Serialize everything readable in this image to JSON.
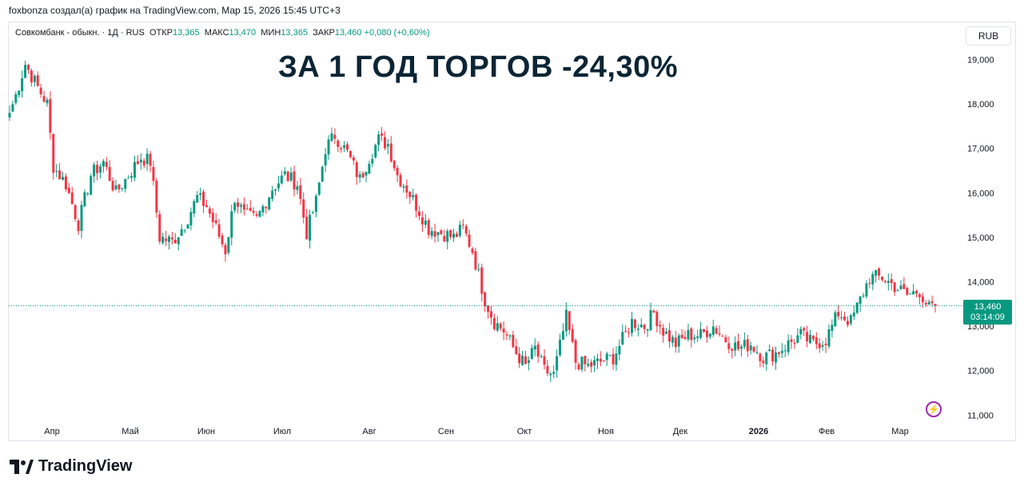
{
  "caption": "foxbonza создал(а) график на TradingView.com, Мар 15, 2026 15:45 UTC+3",
  "legend": {
    "symbol": "Совкомбанк - обыкн. · 1Д · RUS",
    "open_label": "ОТКР",
    "open": "13,365",
    "high_label": "МАКС",
    "high": "13,470",
    "low_label": "МИН",
    "low": "13,365",
    "close_label": "ЗАКР",
    "close": "13,460",
    "change": "+0,080 (+0,60%)"
  },
  "headline": "ЗА 1 ГОД ТОРГОВ -24,30%",
  "currency_button": "RUB",
  "price_tag": {
    "price": "13,460",
    "countdown": "03:14:09"
  },
  "brand": {
    "name": "TradingView",
    "logo_icon": "tradingview-logo-icon"
  },
  "colors": {
    "up": "#089981",
    "down": "#f23645",
    "headline": "#0c2535"
  },
  "chart_data": {
    "type": "candlestick",
    "title": "",
    "y_axis": {
      "min": 11,
      "max": 19,
      "ticks": [
        19,
        18,
        17,
        16,
        15,
        14,
        13,
        12,
        11
      ],
      "tick_labels": [
        "19,000",
        "18,000",
        "17,000",
        "16,000",
        "15,000",
        "14,000",
        "13,000",
        "12,000",
        "11,000"
      ],
      "side": "right"
    },
    "x_axis": {
      "labels": [
        "Апр",
        "Май",
        "Июн",
        "Июл",
        "Авг",
        "Сен",
        "Окт",
        "Ноя",
        "Дек",
        "2026",
        "Фев",
        "Мар"
      ],
      "bold_labels": [
        "2026"
      ]
    },
    "last_price": 13.46,
    "grid": false,
    "waypoints": [
      {
        "i": 0,
        "v": 17.8
      },
      {
        "i": 2,
        "v": 18.2
      },
      {
        "i": 5,
        "v": 18.9
      },
      {
        "i": 8,
        "v": 18.5
      },
      {
        "i": 12,
        "v": 18.0
      },
      {
        "i": 14,
        "v": 16.6
      },
      {
        "i": 18,
        "v": 16.2
      },
      {
        "i": 22,
        "v": 15.3
      },
      {
        "i": 26,
        "v": 16.4
      },
      {
        "i": 30,
        "v": 16.7
      },
      {
        "i": 34,
        "v": 16.0
      },
      {
        "i": 38,
        "v": 16.4
      },
      {
        "i": 42,
        "v": 16.8
      },
      {
        "i": 45,
        "v": 16.7
      },
      {
        "i": 48,
        "v": 15.0
      },
      {
        "i": 52,
        "v": 14.9
      },
      {
        "i": 56,
        "v": 15.3
      },
      {
        "i": 60,
        "v": 15.9
      },
      {
        "i": 63,
        "v": 15.7
      },
      {
        "i": 66,
        "v": 15.2
      },
      {
        "i": 69,
        "v": 14.7
      },
      {
        "i": 72,
        "v": 15.9
      },
      {
        "i": 75,
        "v": 15.5
      },
      {
        "i": 79,
        "v": 15.4
      },
      {
        "i": 84,
        "v": 16.1
      },
      {
        "i": 88,
        "v": 16.4
      },
      {
        "i": 92,
        "v": 16.2
      },
      {
        "i": 95,
        "v": 15.1
      },
      {
        "i": 98,
        "v": 15.8
      },
      {
        "i": 101,
        "v": 17.0
      },
      {
        "i": 104,
        "v": 17.3
      },
      {
        "i": 108,
        "v": 16.9
      },
      {
        "i": 112,
        "v": 16.3
      },
      {
        "i": 115,
        "v": 16.8
      },
      {
        "i": 118,
        "v": 17.2
      },
      {
        "i": 121,
        "v": 17.1
      },
      {
        "i": 124,
        "v": 16.4
      },
      {
        "i": 127,
        "v": 16.1
      },
      {
        "i": 131,
        "v": 15.6
      },
      {
        "i": 134,
        "v": 15.2
      },
      {
        "i": 138,
        "v": 15.1
      },
      {
        "i": 142,
        "v": 15.0
      },
      {
        "i": 145,
        "v": 15.2
      },
      {
        "i": 148,
        "v": 14.7
      },
      {
        "i": 152,
        "v": 13.6
      },
      {
        "i": 155,
        "v": 13.1
      },
      {
        "i": 158,
        "v": 12.9
      },
      {
        "i": 162,
        "v": 12.4
      },
      {
        "i": 165,
        "v": 12.1
      },
      {
        "i": 168,
        "v": 12.5
      },
      {
        "i": 171,
        "v": 12.0
      },
      {
        "i": 174,
        "v": 11.9
      },
      {
        "i": 178,
        "v": 13.2
      },
      {
        "i": 181,
        "v": 12.2
      },
      {
        "i": 185,
        "v": 12.1
      },
      {
        "i": 189,
        "v": 12.2
      },
      {
        "i": 193,
        "v": 12.3
      },
      {
        "i": 196,
        "v": 12.7
      },
      {
        "i": 199,
        "v": 13.1
      },
      {
        "i": 203,
        "v": 13.0
      },
      {
        "i": 206,
        "v": 13.3
      },
      {
        "i": 209,
        "v": 12.9
      },
      {
        "i": 213,
        "v": 12.6
      },
      {
        "i": 217,
        "v": 12.8
      },
      {
        "i": 221,
        "v": 12.8
      },
      {
        "i": 225,
        "v": 13.0
      },
      {
        "i": 229,
        "v": 12.7
      },
      {
        "i": 233,
        "v": 12.5
      },
      {
        "i": 237,
        "v": 12.6
      },
      {
        "i": 241,
        "v": 12.3
      },
      {
        "i": 245,
        "v": 12.4
      },
      {
        "i": 249,
        "v": 12.6
      },
      {
        "i": 253,
        "v": 12.8
      },
      {
        "i": 257,
        "v": 12.6
      },
      {
        "i": 261,
        "v": 12.7
      },
      {
        "i": 265,
        "v": 13.3
      },
      {
        "i": 269,
        "v": 13.1
      },
      {
        "i": 272,
        "v": 13.6
      },
      {
        "i": 275,
        "v": 14.1
      },
      {
        "i": 279,
        "v": 14.1
      },
      {
        "i": 283,
        "v": 13.9
      },
      {
        "i": 287,
        "v": 13.7
      },
      {
        "i": 291,
        "v": 13.8
      },
      {
        "i": 294,
        "v": 13.4
      },
      {
        "i": 296,
        "v": 13.46
      }
    ]
  }
}
